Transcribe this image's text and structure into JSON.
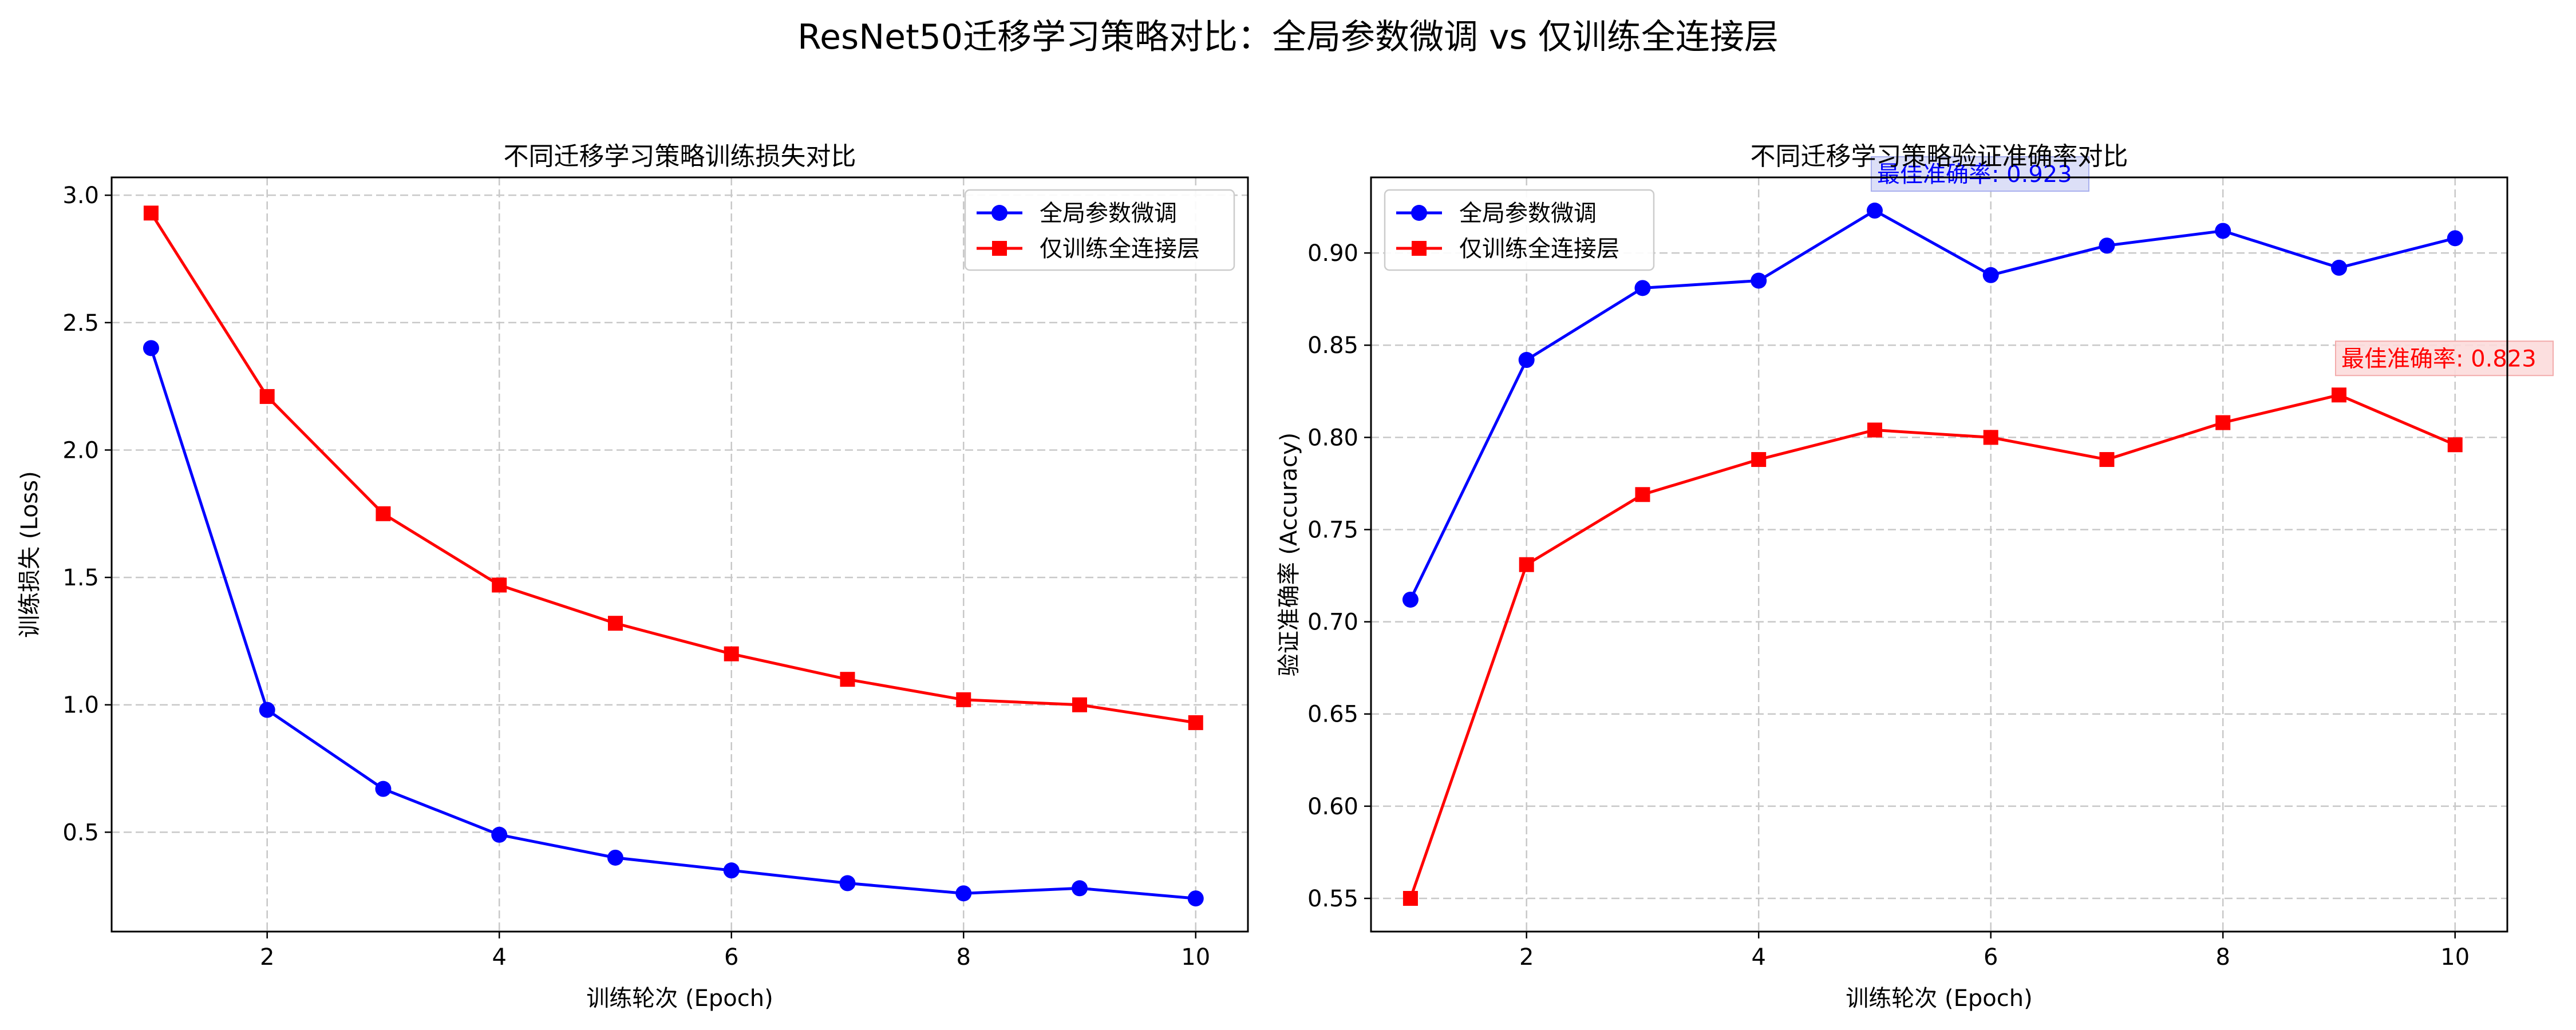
{
  "figure": {
    "title": "ResNet50迁移学习策略对比：全局参数微调 vs 仅训练全连接层"
  },
  "chart_data": [
    {
      "type": "line",
      "title": "不同迁移学习策略训练损失对比",
      "xlabel": "训练轮次 (Epoch)",
      "ylabel": "训练损失 (Loss)",
      "x": [
        1,
        2,
        3,
        4,
        5,
        6,
        7,
        8,
        9,
        10
      ],
      "xlim": [
        0.66,
        10.45
      ],
      "ylim": [
        0.11,
        3.07
      ],
      "xticks": [
        2,
        4,
        6,
        8,
        10
      ],
      "yticks": [
        0.5,
        1.0,
        1.5,
        2.0,
        2.5,
        3.0
      ],
      "tick_decimals": 1,
      "grid": true,
      "legend_position": "upper right",
      "series": [
        {
          "name": "全局参数微调",
          "color": "#0000ff",
          "marker": "circle",
          "values": [
            2.4,
            0.98,
            0.67,
            0.49,
            0.4,
            0.35,
            0.3,
            0.26,
            0.28,
            0.24
          ]
        },
        {
          "name": "仅训练全连接层",
          "color": "#ff0000",
          "marker": "square",
          "values": [
            2.93,
            2.21,
            1.75,
            1.47,
            1.32,
            1.2,
            1.1,
            1.02,
            1.0,
            0.93
          ]
        }
      ],
      "annotations": []
    },
    {
      "type": "line",
      "title": "不同迁移学习策略验证准确率对比",
      "xlabel": "训练轮次 (Epoch)",
      "ylabel": "验证准确率 (Accuracy)",
      "x": [
        1,
        2,
        3,
        4,
        5,
        6,
        7,
        8,
        9,
        10
      ],
      "xlim": [
        0.66,
        10.45
      ],
      "ylim": [
        0.532,
        0.941
      ],
      "xticks": [
        2,
        4,
        6,
        8,
        10
      ],
      "yticks": [
        0.55,
        0.6,
        0.65,
        0.7,
        0.75,
        0.8,
        0.85,
        0.9
      ],
      "tick_decimals": 2,
      "grid": true,
      "legend_position": "upper left",
      "series": [
        {
          "name": "全局参数微调",
          "color": "#0000ff",
          "marker": "circle",
          "values": [
            0.712,
            0.842,
            0.881,
            0.885,
            0.923,
            0.888,
            0.904,
            0.912,
            0.892,
            0.908
          ]
        },
        {
          "name": "仅训练全连接层",
          "color": "#ff0000",
          "marker": "square",
          "values": [
            0.55,
            0.731,
            0.769,
            0.788,
            0.804,
            0.8,
            0.788,
            0.808,
            0.823,
            0.796
          ]
        }
      ],
      "annotations": [
        {
          "text": "最佳准确率: 0.923",
          "x": 5,
          "y": 0.923,
          "color": "#0000ff",
          "bg": "#d8dcf6",
          "border": "#a9b0ee"
        },
        {
          "text": "最佳准确率: 0.823",
          "x": 9,
          "y": 0.823,
          "color": "#ff0000",
          "bg": "#fcdcdc",
          "border": "#f3abab"
        }
      ]
    }
  ]
}
